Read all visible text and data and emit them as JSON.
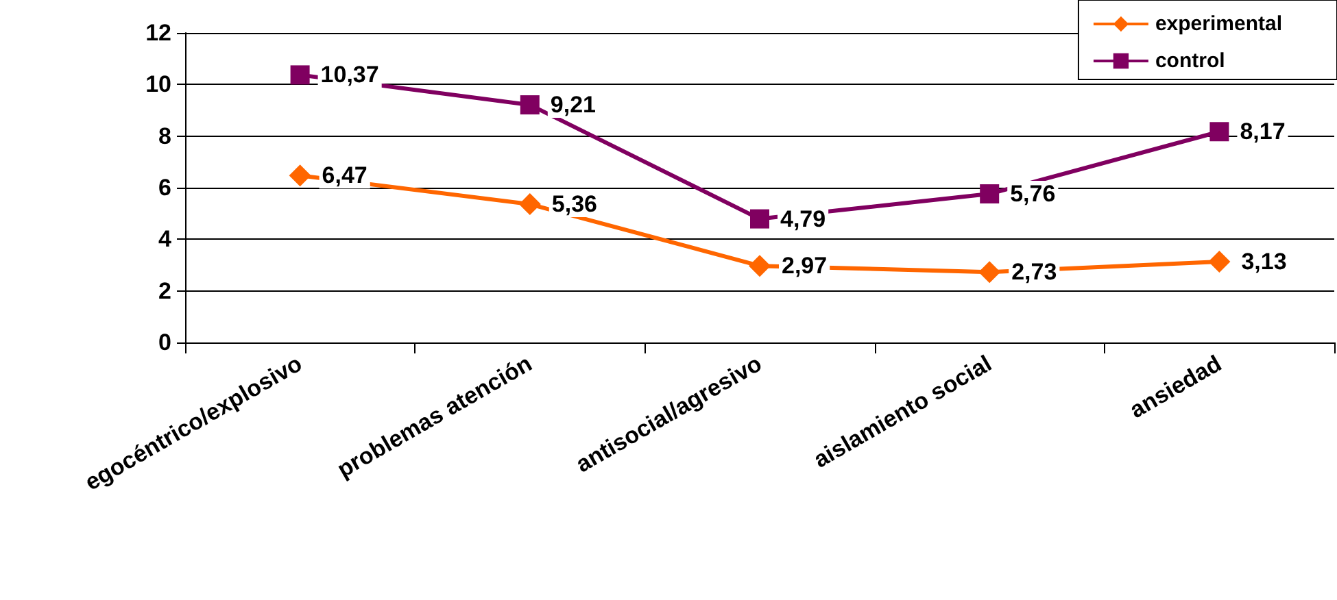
{
  "chart_data": {
    "type": "line",
    "categories": [
      "egocéntrico/explosivo",
      "problemas atención",
      "antisocial/agresivo",
      "aislamiento social",
      "ansiedad"
    ],
    "series": [
      {
        "name": "experimental",
        "color": "#ff6600",
        "marker": "diamond",
        "values": [
          6.47,
          5.36,
          2.97,
          2.73,
          3.13
        ],
        "value_labels": [
          "6,47",
          "5,36",
          "2,97",
          "2,73",
          "3,13"
        ]
      },
      {
        "name": "control",
        "color": "#800060",
        "marker": "square",
        "values": [
          10.37,
          9.21,
          4.79,
          5.76,
          8.17
        ],
        "value_labels": [
          "10,37",
          "9,21",
          "4,79",
          "5,76",
          "8,17"
        ]
      }
    ],
    "ylim": [
      0,
      12
    ],
    "yticks": [
      0,
      2,
      4,
      6,
      8,
      10,
      12
    ],
    "grid": "y",
    "legend": "top right",
    "line_style": "solid"
  }
}
